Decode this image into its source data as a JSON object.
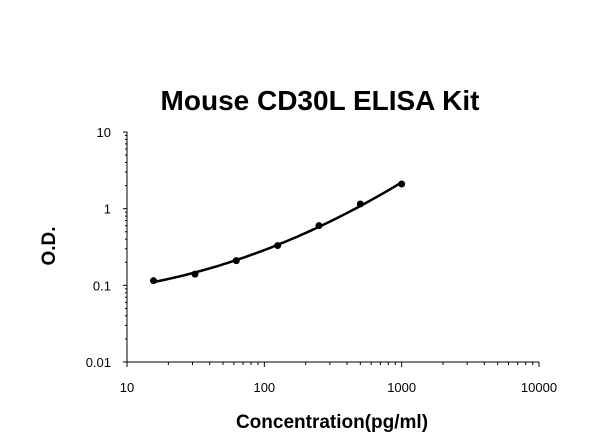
{
  "chart_data": {
    "type": "scatter",
    "title": "Mouse CD30L ELISA Kit",
    "xlabel": "Concentration(pg/ml)",
    "ylabel": "O.D.",
    "xscale": "log",
    "yscale": "log",
    "xlim": [
      10,
      10000
    ],
    "ylim": [
      0.01,
      10
    ],
    "x_ticks": [
      "10",
      "100",
      "1000",
      "10000"
    ],
    "y_ticks": [
      "0.01",
      "0.1",
      "1",
      "10"
    ],
    "grid": false,
    "legend": "none",
    "trendline": "smooth curve through points",
    "series": [
      {
        "x": [
          15.6,
          31.25,
          62.5,
          125,
          250,
          500,
          1000
        ],
        "y": [
          0.115,
          0.14,
          0.21,
          0.33,
          0.6,
          1.15,
          2.1
        ]
      }
    ],
    "color": "#000000"
  }
}
